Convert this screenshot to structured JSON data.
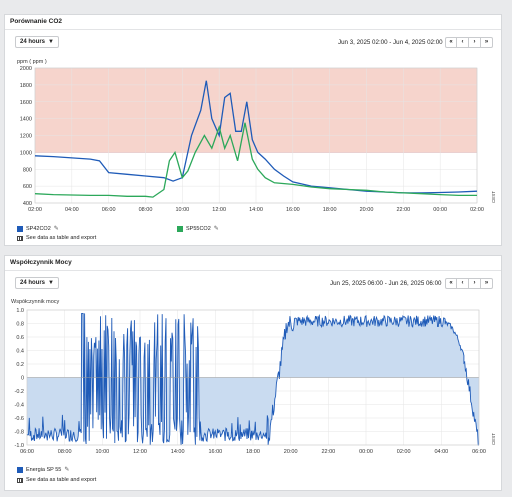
{
  "panel1": {
    "title": "Porównanie CO2",
    "range_label": "24 hours",
    "date_range": "Jun 3, 2025 02:00 - Jun 4, 2025 02:00",
    "nav": [
      "«",
      "‹",
      "›",
      "»"
    ],
    "export_label": "See data as table and export",
    "edge_label": "CEST",
    "pencil_icon": "pencil-icon",
    "colors": {
      "band": "#f6d4cc",
      "series1": "#1f5bb8",
      "series2": "#2ca85a",
      "grid": "#e5e5e5"
    }
  },
  "panel2": {
    "title": "Współczynnik Mocy",
    "range_label": "24 hours",
    "date_range": "Jun 25, 2025 06:00 - Jun 26, 2025 06:00",
    "nav": [
      "«",
      "‹",
      "›",
      "»"
    ],
    "export_label": "See data as table and export",
    "edge_label": "CEST",
    "pencil_icon": "pencil-icon",
    "colors": {
      "fill": "#c9dbf0",
      "line": "#1f5bb8",
      "grid": "#e5e5e5"
    }
  },
  "chart_data": [
    {
      "type": "line",
      "ylabel": "ppm ( ppm )",
      "ylim": [
        400,
        2000
      ],
      "yticks": [
        400,
        600,
        800,
        1000,
        1200,
        1400,
        1600,
        1800,
        2000
      ],
      "xticks": [
        "02:00",
        "04:00",
        "06:00",
        "08:00",
        "10:00",
        "12:00",
        "14:00",
        "16:00",
        "18:00",
        "20:00",
        "22:00",
        "00:00",
        "02:00"
      ],
      "threshold_band": [
        1000,
        2000
      ],
      "grid": true,
      "legend_position": "bottom",
      "series": [
        {
          "name": "SP42CO2",
          "color": "#1f5bb8",
          "points": [
            [
              0,
              960
            ],
            [
              1,
              950
            ],
            [
              2,
              935
            ],
            [
              3,
              920
            ],
            [
              3.5,
              900
            ],
            [
              4,
              760
            ],
            [
              5,
              740
            ],
            [
              6,
              720
            ],
            [
              7,
              700
            ],
            [
              7.5,
              660
            ],
            [
              8,
              700
            ],
            [
              8.5,
              1200
            ],
            [
              9,
              1500
            ],
            [
              9.3,
              1850
            ],
            [
              9.6,
              1400
            ],
            [
              10,
              1200
            ],
            [
              10.3,
              1650
            ],
            [
              10.6,
              1700
            ],
            [
              10.9,
              1250
            ],
            [
              11.2,
              1250
            ],
            [
              11.5,
              1600
            ],
            [
              11.8,
              1150
            ],
            [
              12.1,
              1000
            ],
            [
              12.5,
              920
            ],
            [
              13,
              800
            ],
            [
              13.5,
              720
            ],
            [
              14,
              650
            ],
            [
              15,
              600
            ],
            [
              16,
              580
            ],
            [
              17,
              560
            ],
            [
              18,
              540
            ],
            [
              19,
              530
            ],
            [
              20,
              520
            ],
            [
              21,
              520
            ],
            [
              22,
              525
            ],
            [
              23,
              530
            ],
            [
              24,
              540
            ]
          ]
        },
        {
          "name": "SP55CO2",
          "color": "#2ca85a",
          "points": [
            [
              0,
              510
            ],
            [
              1,
              500
            ],
            [
              2,
              495
            ],
            [
              3,
              490
            ],
            [
              4,
              490
            ],
            [
              5,
              480
            ],
            [
              6,
              480
            ],
            [
              6.4,
              470
            ],
            [
              7,
              560
            ],
            [
              7.3,
              900
            ],
            [
              7.6,
              1000
            ],
            [
              8,
              700
            ],
            [
              8.3,
              780
            ],
            [
              8.7,
              1000
            ],
            [
              9.2,
              1200
            ],
            [
              9.6,
              1050
            ],
            [
              10,
              1300
            ],
            [
              10.3,
              1050
            ],
            [
              10.6,
              1200
            ],
            [
              11,
              900
            ],
            [
              11.4,
              1350
            ],
            [
              11.8,
              920
            ],
            [
              12.1,
              800
            ],
            [
              12.5,
              700
            ],
            [
              13,
              640
            ],
            [
              14,
              620
            ],
            [
              15,
              590
            ],
            [
              16,
              570
            ],
            [
              17,
              560
            ],
            [
              18,
              550
            ],
            [
              19,
              530
            ],
            [
              20,
              520
            ],
            [
              21,
              510
            ],
            [
              22,
              500
            ],
            [
              23,
              490
            ],
            [
              24,
              490
            ]
          ]
        }
      ]
    },
    {
      "type": "area",
      "ylabel": "Współczynnik mocy",
      "ylim": [
        -1.0,
        1.0
      ],
      "yticks": [
        -1.0,
        -0.8,
        -0.6,
        -0.4,
        -0.2,
        0,
        0.2,
        0.4,
        0.6,
        0.8,
        1.0
      ],
      "xticks": [
        "06:00",
        "08:00",
        "10:00",
        "12:00",
        "14:00",
        "16:00",
        "18:00",
        "20:00",
        "22:00",
        "00:00",
        "02:00",
        "04:00",
        "06:00"
      ],
      "grid": true,
      "legend_position": "bottom",
      "series": [
        {
          "name": "Energia SP 55",
          "color": "#1f5bb8",
          "segments": [
            {
              "x0": 0.0,
              "x1": 2.9,
              "pattern": "lowband",
              "lo": -0.95,
              "hi": -0.55
            },
            {
              "x0": 2.9,
              "x1": 3.1,
              "pattern": "spike",
              "lo": -0.95,
              "hi": 0.95
            },
            {
              "x0": 3.1,
              "x1": 9.2,
              "pattern": "chaotic",
              "lo": -1.0,
              "hi": 0.95
            },
            {
              "x0": 9.2,
              "x1": 12.8,
              "pattern": "lowband",
              "lo": -0.95,
              "hi": -0.55
            },
            {
              "x0": 12.8,
              "x1": 14.2,
              "pattern": "ramp",
              "lo": -0.95,
              "hi": 0.8
            },
            {
              "x0": 14.2,
              "x1": 22.2,
              "pattern": "highband",
              "lo": 0.75,
              "hi": 0.92
            },
            {
              "x0": 22.2,
              "x1": 23.2,
              "pattern": "fall",
              "lo": 0.3,
              "hi": 0.8
            },
            {
              "x0": 23.2,
              "x1": 24.0,
              "pattern": "plunge",
              "lo": -1.0,
              "hi": 0.3
            }
          ]
        }
      ]
    }
  ]
}
